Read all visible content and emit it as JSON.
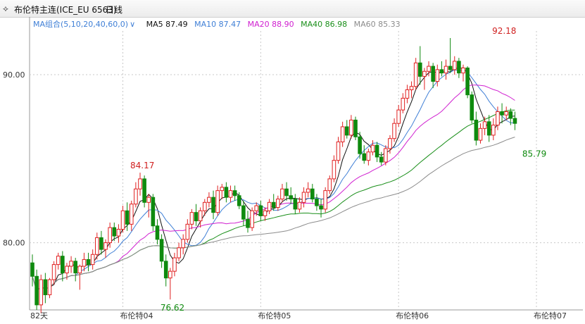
{
  "header": {
    "icon": "chart-menu-icon",
    "title": "布伦特主连(ICE_EU 6563)",
    "period": "日线",
    "dropdown_icon": "chevron-down-icon"
  },
  "legend": {
    "ma_group": "MA组合(5,10,20,40,60,0)",
    "ma_group_arrow": "∨",
    "items": [
      {
        "label": "MA5 87.49",
        "color": "#111111"
      },
      {
        "label": "MA10 87.47",
        "color": "#3f7fd6"
      },
      {
        "label": "MA20 88.90",
        "color": "#d020d0"
      },
      {
        "label": "MA40 86.98",
        "color": "#1a8f1a"
      },
      {
        "label": "MA60 85.33",
        "color": "#8c8c8c"
      }
    ]
  },
  "colors": {
    "up": "#e02020",
    "down": "#0e8a0e",
    "grid": "#c8c8c8"
  },
  "chart_data": {
    "type": "candlestick",
    "ylim": [
      76.0,
      92.6
    ],
    "yticks": [
      80.0,
      90.0
    ],
    "ytick_labels": [
      "80.00",
      "90.00"
    ],
    "xtick_labels": [
      "82天",
      "布伦特04",
      "布伦特05",
      "布伦特06",
      "布伦特07"
    ],
    "xtick_index": [
      0,
      21,
      53,
      85,
      117
    ],
    "annotations": [
      {
        "text": "84.17",
        "index": 25,
        "value": 84.17,
        "color": "#d02020",
        "pos": "above"
      },
      {
        "text": "76.62",
        "index": 32,
        "value": 76.62,
        "color": "#0e8a0e",
        "pos": "below"
      },
      {
        "text": "92.18",
        "index": 109,
        "value": 92.18,
        "color": "#d02020",
        "pos": "above"
      },
      {
        "text": "85.79",
        "index": 116,
        "value": 85.79,
        "color": "#0e8a0e",
        "pos": "below"
      }
    ],
    "candles": [
      [
        78.8,
        79.3,
        77.4,
        78.0
      ],
      [
        78.0,
        78.4,
        76.0,
        76.3
      ],
      [
        76.3,
        78.1,
        75.8,
        77.8
      ],
      [
        77.8,
        78.2,
        76.4,
        76.9
      ],
      [
        76.9,
        77.9,
        76.7,
        77.8
      ],
      [
        77.8,
        78.9,
        77.5,
        78.7
      ],
      [
        78.7,
        79.4,
        78.4,
        79.2
      ],
      [
        79.2,
        79.5,
        77.7,
        78.2
      ],
      [
        78.2,
        78.8,
        77.8,
        78.6
      ],
      [
        78.6,
        79.2,
        78.2,
        78.9
      ],
      [
        78.9,
        79.1,
        77.7,
        78.2
      ],
      [
        78.2,
        78.7,
        77.2,
        78.6
      ],
      [
        78.6,
        79.4,
        78.3,
        79.0
      ],
      [
        79.0,
        79.4,
        78.3,
        78.7
      ],
      [
        78.7,
        79.6,
        78.4,
        79.3
      ],
      [
        79.3,
        80.6,
        79.0,
        80.3
      ],
      [
        80.3,
        80.7,
        79.3,
        79.6
      ],
      [
        79.6,
        80.2,
        79.1,
        80.0
      ],
      [
        80.0,
        81.2,
        79.7,
        80.9
      ],
      [
        80.9,
        81.2,
        80.1,
        80.4
      ],
      [
        80.4,
        81.1,
        80.0,
        80.8
      ],
      [
        80.8,
        82.2,
        80.6,
        81.9
      ],
      [
        81.9,
        82.4,
        80.7,
        81.1
      ],
      [
        81.1,
        82.5,
        80.7,
        82.3
      ],
      [
        82.3,
        83.6,
        82.1,
        83.2
      ],
      [
        83.2,
        84.17,
        82.8,
        83.8
      ],
      [
        83.8,
        84.0,
        82.1,
        82.4
      ],
      [
        82.4,
        82.9,
        81.5,
        82.7
      ],
      [
        82.7,
        82.9,
        80.7,
        81.0
      ],
      [
        81.0,
        81.4,
        79.9,
        80.2
      ],
      [
        80.2,
        80.5,
        78.5,
        78.9
      ],
      [
        78.9,
        79.3,
        77.4,
        77.9
      ],
      [
        77.9,
        78.5,
        76.62,
        78.3
      ],
      [
        78.3,
        79.4,
        78.0,
        79.1
      ],
      [
        79.1,
        80.0,
        78.9,
        79.7
      ],
      [
        79.7,
        80.5,
        79.3,
        80.2
      ],
      [
        80.2,
        81.4,
        80.0,
        81.1
      ],
      [
        81.1,
        82.0,
        80.8,
        81.8
      ],
      [
        81.8,
        82.3,
        81.0,
        81.3
      ],
      [
        81.3,
        82.1,
        80.9,
        81.9
      ],
      [
        81.9,
        82.6,
        81.6,
        82.4
      ],
      [
        82.4,
        83.0,
        82.1,
        82.7
      ],
      [
        82.7,
        83.1,
        81.4,
        81.8
      ],
      [
        81.8,
        83.4,
        81.6,
        83.1
      ],
      [
        83.1,
        83.5,
        82.6,
        83.3
      ],
      [
        83.3,
        83.6,
        82.4,
        82.7
      ],
      [
        82.7,
        83.4,
        82.4,
        83.1
      ],
      [
        83.1,
        83.4,
        82.5,
        82.8
      ],
      [
        82.8,
        83.0,
        82.0,
        82.2
      ],
      [
        82.2,
        82.5,
        81.0,
        81.4
      ],
      [
        81.4,
        81.9,
        80.6,
        80.9
      ],
      [
        80.9,
        82.1,
        80.7,
        81.9
      ],
      [
        81.9,
        82.4,
        81.6,
        82.2
      ],
      [
        82.2,
        82.5,
        81.3,
        81.6
      ],
      [
        81.6,
        82.1,
        81.3,
        81.9
      ],
      [
        81.9,
        82.6,
        81.7,
        82.4
      ],
      [
        82.4,
        82.9,
        81.9,
        82.1
      ],
      [
        82.1,
        82.8,
        81.9,
        82.6
      ],
      [
        82.6,
        83.5,
        82.4,
        83.2
      ],
      [
        83.2,
        83.6,
        82.5,
        82.8
      ],
      [
        82.8,
        83.3,
        82.3,
        82.6
      ],
      [
        82.6,
        82.9,
        81.7,
        82.0
      ],
      [
        82.0,
        82.7,
        81.8,
        82.4
      ],
      [
        82.4,
        83.3,
        82.1,
        83.0
      ],
      [
        83.0,
        83.6,
        82.7,
        83.2
      ],
      [
        83.2,
        83.5,
        82.4,
        82.6
      ],
      [
        82.6,
        82.9,
        81.9,
        82.2
      ],
      [
        82.2,
        82.6,
        81.5,
        82.0
      ],
      [
        82.0,
        83.3,
        81.8,
        83.1
      ],
      [
        83.1,
        84.0,
        82.9,
        83.8
      ],
      [
        83.8,
        85.2,
        83.6,
        84.9
      ],
      [
        84.9,
        86.3,
        84.7,
        86.0
      ],
      [
        86.0,
        87.2,
        85.7,
        86.9
      ],
      [
        86.9,
        87.3,
        86.2,
        86.4
      ],
      [
        86.4,
        87.6,
        86.2,
        87.3
      ],
      [
        87.3,
        87.5,
        86.1,
        86.3
      ],
      [
        86.3,
        86.6,
        85.0,
        85.3
      ],
      [
        85.3,
        85.8,
        84.7,
        84.9
      ],
      [
        84.9,
        85.6,
        84.6,
        85.4
      ],
      [
        85.4,
        86.1,
        85.2,
        85.8
      ],
      [
        85.8,
        86.0,
        84.8,
        85.1
      ],
      [
        85.1,
        85.4,
        84.6,
        84.8
      ],
      [
        84.8,
        85.8,
        84.6,
        85.6
      ],
      [
        85.6,
        86.4,
        85.3,
        86.2
      ],
      [
        86.2,
        87.4,
        86.0,
        87.1
      ],
      [
        87.1,
        88.2,
        86.9,
        87.9
      ],
      [
        87.9,
        88.9,
        87.7,
        88.6
      ],
      [
        88.6,
        89.4,
        88.3,
        89.1
      ],
      [
        89.1,
        89.6,
        88.6,
        89.3
      ],
      [
        89.3,
        91.0,
        89.1,
        90.7
      ],
      [
        90.7,
        91.7,
        89.4,
        89.9
      ],
      [
        89.9,
        90.4,
        89.1,
        90.2
      ],
      [
        90.2,
        90.8,
        89.9,
        90.5
      ],
      [
        90.5,
        90.7,
        89.2,
        89.6
      ],
      [
        89.6,
        90.6,
        89.3,
        90.3
      ],
      [
        90.3,
        90.8,
        89.9,
        90.1
      ],
      [
        90.1,
        90.9,
        89.7,
        90.5
      ],
      [
        90.5,
        92.18,
        90.1,
        90.3
      ],
      [
        90.3,
        91.1,
        90.0,
        90.8
      ],
      [
        90.8,
        91.0,
        89.8,
        90.1
      ],
      [
        90.1,
        90.6,
        89.6,
        90.4
      ],
      [
        90.4,
        90.5,
        88.6,
        88.8
      ],
      [
        88.8,
        89.0,
        87.1,
        87.3
      ],
      [
        87.3,
        87.8,
        85.79,
        86.1
      ],
      [
        86.1,
        87.1,
        85.9,
        86.8
      ],
      [
        86.8,
        87.5,
        86.4,
        87.2
      ],
      [
        87.2,
        87.6,
        86.0,
        86.4
      ],
      [
        86.4,
        87.4,
        86.1,
        87.0
      ],
      [
        87.0,
        88.1,
        86.7,
        87.8
      ],
      [
        87.8,
        88.3,
        87.1,
        87.6
      ],
      [
        87.6,
        88.1,
        87.3,
        87.8
      ],
      [
        87.8,
        88.0,
        87.0,
        87.4
      ],
      [
        87.4,
        87.8,
        86.7,
        87.1
      ]
    ]
  }
}
